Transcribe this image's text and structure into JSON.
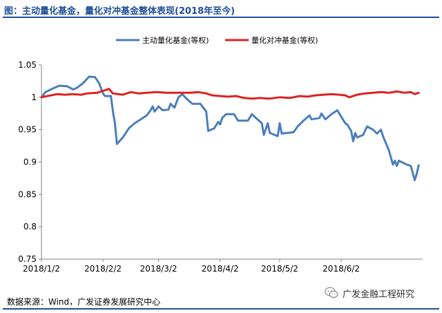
{
  "header": {
    "title": "图：主动量化基金，量化对冲基金整体表现(2018年至今)"
  },
  "footer": {
    "source": "数据来源：Wind，广发证券发展研究中心",
    "watermark": "广发金融工程研究",
    "watermark_icon": "wechat-icon"
  },
  "chart_data": {
    "type": "line",
    "title": "",
    "xlabel": "",
    "ylabel": "",
    "ylim": [
      0.75,
      1.05
    ],
    "yticks": [
      "0.75",
      "0.8",
      "0.85",
      "0.9",
      "0.95",
      "1",
      "1.05"
    ],
    "xlim": [
      "2018-01-02",
      "2018-07-13"
    ],
    "xticks": [
      {
        "date": "2018-01-02",
        "label": "2018/1/2"
      },
      {
        "date": "2018-02-02",
        "label": "2018/2/2"
      },
      {
        "date": "2018-03-02",
        "label": "2018/3/2"
      },
      {
        "date": "2018-04-02",
        "label": "2018/4/2"
      },
      {
        "date": "2018-05-02",
        "label": "2018/5/2"
      },
      {
        "date": "2018-06-02",
        "label": "2018/6/2"
      }
    ],
    "grid": false,
    "legend_position": "top-center",
    "series": [
      {
        "name": "主动量化基金(等权)",
        "color": "#4a7ebb",
        "points": [
          [
            "2018-01-02",
            1.0
          ],
          [
            "2018-01-04",
            1.008
          ],
          [
            "2018-01-08",
            1.014
          ],
          [
            "2018-01-11",
            1.018
          ],
          [
            "2018-01-15",
            1.017
          ],
          [
            "2018-01-18",
            1.012
          ],
          [
            "2018-01-20",
            1.015
          ],
          [
            "2018-01-23",
            1.022
          ],
          [
            "2018-01-26",
            1.032
          ],
          [
            "2018-01-29",
            1.031
          ],
          [
            "2018-01-31",
            1.022
          ],
          [
            "2018-02-02",
            1.006
          ],
          [
            "2018-02-03",
            1.002
          ],
          [
            "2018-02-06",
            1.002
          ],
          [
            "2018-02-07",
            0.978
          ],
          [
            "2018-02-08",
            0.96
          ],
          [
            "2018-02-09",
            0.928
          ],
          [
            "2018-02-12",
            0.938
          ],
          [
            "2018-02-15",
            0.952
          ],
          [
            "2018-02-18",
            0.96
          ],
          [
            "2018-02-21",
            0.966
          ],
          [
            "2018-02-24",
            0.972
          ],
          [
            "2018-02-26",
            0.98
          ],
          [
            "2018-02-27",
            0.986
          ],
          [
            "2018-02-28",
            0.978
          ],
          [
            "2018-03-01",
            0.982
          ],
          [
            "2018-03-02",
            0.986
          ],
          [
            "2018-03-04",
            0.98
          ],
          [
            "2018-03-07",
            0.981
          ],
          [
            "2018-03-08",
            0.99
          ],
          [
            "2018-03-10",
            0.984
          ],
          [
            "2018-03-12",
            1.0
          ],
          [
            "2018-03-14",
            1.005
          ],
          [
            "2018-03-16",
            0.998
          ],
          [
            "2018-03-19",
            0.99
          ],
          [
            "2018-03-23",
            0.99
          ],
          [
            "2018-03-26",
            0.978
          ],
          [
            "2018-03-27",
            0.948
          ],
          [
            "2018-03-30",
            0.952
          ],
          [
            "2018-04-01",
            0.962
          ],
          [
            "2018-04-02",
            0.958
          ],
          [
            "2018-04-03",
            0.968
          ],
          [
            "2018-04-05",
            0.974
          ],
          [
            "2018-04-09",
            0.974
          ],
          [
            "2018-04-11",
            0.964
          ],
          [
            "2018-04-16",
            0.964
          ],
          [
            "2018-04-18",
            0.974
          ],
          [
            "2018-04-20",
            0.968
          ],
          [
            "2018-04-23",
            0.96
          ],
          [
            "2018-04-24",
            0.942
          ],
          [
            "2018-04-26",
            0.96
          ],
          [
            "2018-04-27",
            0.945
          ],
          [
            "2018-05-01",
            0.94
          ],
          [
            "2018-05-02",
            0.96
          ],
          [
            "2018-05-03",
            0.944
          ],
          [
            "2018-05-09",
            0.946
          ],
          [
            "2018-05-11",
            0.955
          ],
          [
            "2018-05-14",
            0.964
          ],
          [
            "2018-05-17",
            0.972
          ],
          [
            "2018-05-18",
            0.966
          ],
          [
            "2018-05-22",
            0.968
          ],
          [
            "2018-05-23",
            0.975
          ],
          [
            "2018-05-25",
            0.966
          ],
          [
            "2018-05-28",
            0.974
          ],
          [
            "2018-05-31",
            0.98
          ],
          [
            "2018-06-04",
            0.96
          ],
          [
            "2018-06-05",
            0.958
          ],
          [
            "2018-06-07",
            0.948
          ],
          [
            "2018-06-08",
            0.932
          ],
          [
            "2018-06-09",
            0.945
          ],
          [
            "2018-06-10",
            0.938
          ],
          [
            "2018-06-13",
            0.942
          ],
          [
            "2018-06-15",
            0.955
          ],
          [
            "2018-06-18",
            0.95
          ],
          [
            "2018-06-20",
            0.944
          ],
          [
            "2018-06-22",
            0.95
          ],
          [
            "2018-06-23",
            0.94
          ],
          [
            "2018-06-26",
            0.918
          ],
          [
            "2018-06-28",
            0.896
          ],
          [
            "2018-06-29",
            0.902
          ],
          [
            "2018-06-30",
            0.894
          ],
          [
            "2018-07-01",
            0.902
          ],
          [
            "2018-07-05",
            0.896
          ],
          [
            "2018-07-07",
            0.894
          ],
          [
            "2018-07-09",
            0.872
          ],
          [
            "2018-07-10",
            0.882
          ],
          [
            "2018-07-11",
            0.895
          ]
        ]
      },
      {
        "name": "量化对冲基金(等权)",
        "color": "#e02020",
        "points": [
          [
            "2018-01-02",
            1.0
          ],
          [
            "2018-01-05",
            1.002
          ],
          [
            "2018-01-10",
            1.005
          ],
          [
            "2018-01-14",
            1.004
          ],
          [
            "2018-01-18",
            1.005
          ],
          [
            "2018-01-22",
            1.004
          ],
          [
            "2018-01-25",
            1.006
          ],
          [
            "2018-01-30",
            1.007
          ],
          [
            "2018-02-02",
            1.01
          ],
          [
            "2018-02-05",
            1.013
          ],
          [
            "2018-02-07",
            1.006
          ],
          [
            "2018-02-12",
            1.004
          ],
          [
            "2018-02-16",
            1.008
          ],
          [
            "2018-02-20",
            1.006
          ],
          [
            "2018-02-24",
            1.007
          ],
          [
            "2018-03-01",
            1.008
          ],
          [
            "2018-03-06",
            1.007
          ],
          [
            "2018-03-12",
            1.007
          ],
          [
            "2018-03-18",
            1.007
          ],
          [
            "2018-03-22",
            1.008
          ],
          [
            "2018-03-26",
            1.006
          ],
          [
            "2018-03-29",
            1.003
          ],
          [
            "2018-04-02",
            1.002
          ],
          [
            "2018-04-06",
            1.001
          ],
          [
            "2018-04-10",
            1.002
          ],
          [
            "2018-04-14",
            0.999
          ],
          [
            "2018-04-18",
            0.998
          ],
          [
            "2018-04-22",
            0.999
          ],
          [
            "2018-04-27",
            0.998
          ],
          [
            "2018-05-02",
            1.0
          ],
          [
            "2018-05-07",
            0.999
          ],
          [
            "2018-05-12",
            1.002
          ],
          [
            "2018-05-16",
            1.001
          ],
          [
            "2018-05-20",
            1.003
          ],
          [
            "2018-05-24",
            1.004
          ],
          [
            "2018-05-28",
            1.005
          ],
          [
            "2018-06-01",
            1.004
          ],
          [
            "2018-06-04",
            1.003
          ],
          [
            "2018-06-06",
            1.0
          ],
          [
            "2018-06-10",
            1.004
          ],
          [
            "2018-06-14",
            1.006
          ],
          [
            "2018-06-18",
            1.007
          ],
          [
            "2018-06-22",
            1.008
          ],
          [
            "2018-06-26",
            1.007
          ],
          [
            "2018-06-30",
            1.009
          ],
          [
            "2018-07-04",
            1.007
          ],
          [
            "2018-07-07",
            1.008
          ],
          [
            "2018-07-09",
            1.005
          ],
          [
            "2018-07-11",
            1.007
          ]
        ]
      }
    ]
  }
}
